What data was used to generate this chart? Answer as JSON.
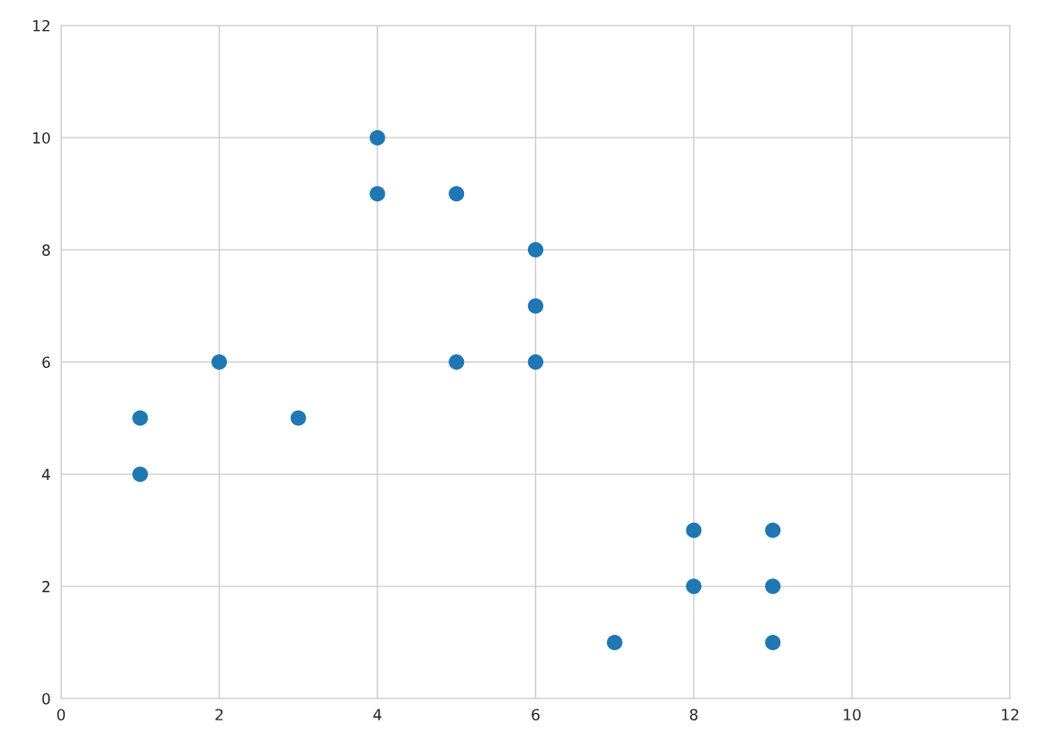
{
  "chart_data": {
    "type": "scatter",
    "x": [
      1,
      1,
      2,
      3,
      4,
      4,
      5,
      5,
      6,
      6,
      6,
      7,
      8,
      8,
      9,
      9,
      9
    ],
    "values": [
      5,
      4,
      6,
      5,
      10,
      9,
      9,
      6,
      8,
      7,
      6,
      1,
      3,
      2,
      3,
      2,
      1
    ],
    "color": "#1f77b4",
    "marker": "circle",
    "xlim": [
      0,
      12
    ],
    "ylim": [
      0,
      12
    ],
    "xticks": [
      0,
      2,
      4,
      6,
      8,
      10,
      12
    ],
    "yticks": [
      0,
      2,
      4,
      6,
      8,
      10,
      12
    ],
    "grid": true,
    "legend": false
  }
}
